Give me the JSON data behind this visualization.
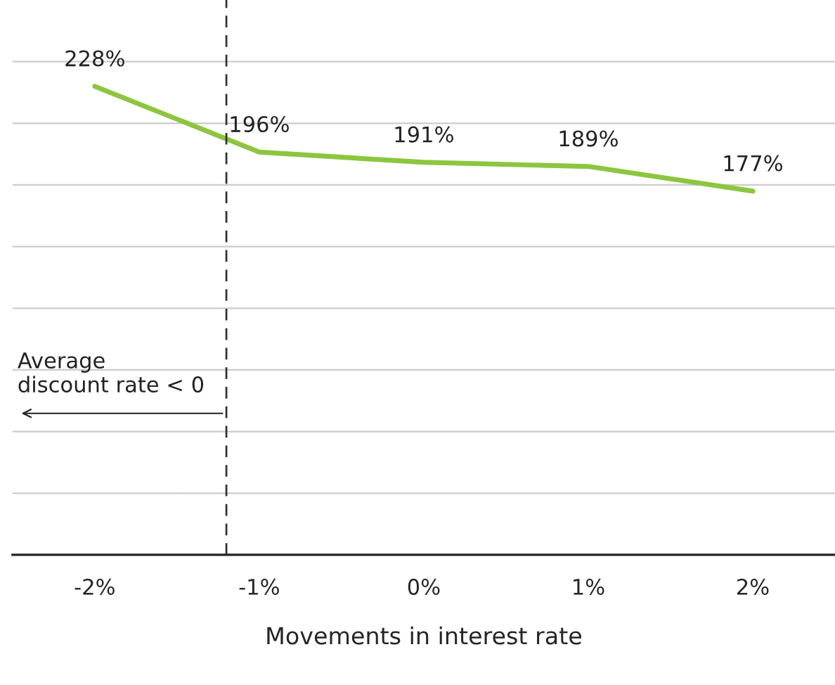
{
  "chart_data": {
    "type": "line",
    "xlabel": "Movements in interest rate",
    "x": [
      -2,
      -1,
      0,
      1,
      2
    ],
    "series": [
      {
        "color": "#8cc63f",
        "values": [
          228,
          196,
          191,
          189,
          177
        ],
        "value_labels": [
          "228%",
          "196%",
          "191%",
          "189%",
          "177%"
        ]
      }
    ],
    "xlim": [
      -2.5,
      2.5
    ],
    "xticks": [
      {
        "value": -2,
        "label": "-2%"
      },
      {
        "value": -1,
        "label": "-1%"
      },
      {
        "value": 0,
        "label": "0%"
      },
      {
        "value": 1,
        "label": "1%"
      },
      {
        "value": 2,
        "label": "2%"
      }
    ],
    "ylim": [
      0,
      270
    ],
    "yticks": [
      {
        "value": 0,
        "label": null
      },
      {
        "value": 30,
        "label": null
      },
      {
        "value": 60,
        "label": null
      },
      {
        "value": 90,
        "label": null
      },
      {
        "value": 120,
        "label": null
      },
      {
        "value": 150,
        "label": null
      },
      {
        "value": 180,
        "label": null
      },
      {
        "value": 210,
        "label": null
      },
      {
        "value": 240,
        "label": null
      }
    ],
    "tick_labels": "x",
    "grid": "y",
    "ref_lines": [
      {
        "axis": "x",
        "value": -1.2,
        "color": "#333333",
        "line_style": "dashed"
      }
    ],
    "annotations": [
      "Average\ndiscount rate < 0"
    ],
    "marker": "none",
    "line_style": "solid"
  }
}
